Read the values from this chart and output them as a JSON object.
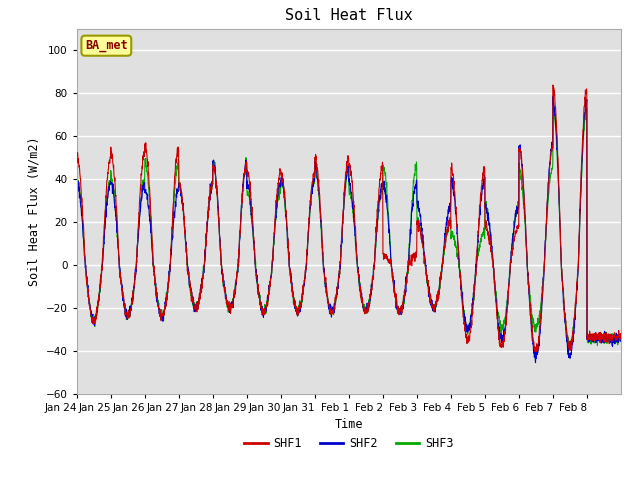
{
  "title": "Soil Heat Flux",
  "ylabel": "Soil Heat Flux (W/m2)",
  "xlabel": "Time",
  "ylim": [
    -60,
    110
  ],
  "yticks": [
    -60,
    -40,
    -20,
    0,
    20,
    40,
    60,
    80,
    100
  ],
  "bg_color": "#e0e0e0",
  "legend_label": "BA_met",
  "legend_bg": "#ffff99",
  "legend_border": "#999900",
  "series_colors": [
    "#cc0000",
    "#0000cc",
    "#00aa00"
  ],
  "series_names": [
    "SHF1",
    "SHF2",
    "SHF3"
  ],
  "xtick_labels": [
    "Jan 24",
    "Jan 25",
    "Jan 26",
    "Jan 27",
    "Jan 28",
    "Jan 29",
    "Jan 30",
    "Jan 31",
    "Feb 1",
    "Feb 2",
    "Feb 3",
    "Feb 4",
    "Feb 5",
    "Feb 6",
    "Feb 7",
    "Feb 8"
  ],
  "n_days": 16,
  "pts_per_day": 144
}
